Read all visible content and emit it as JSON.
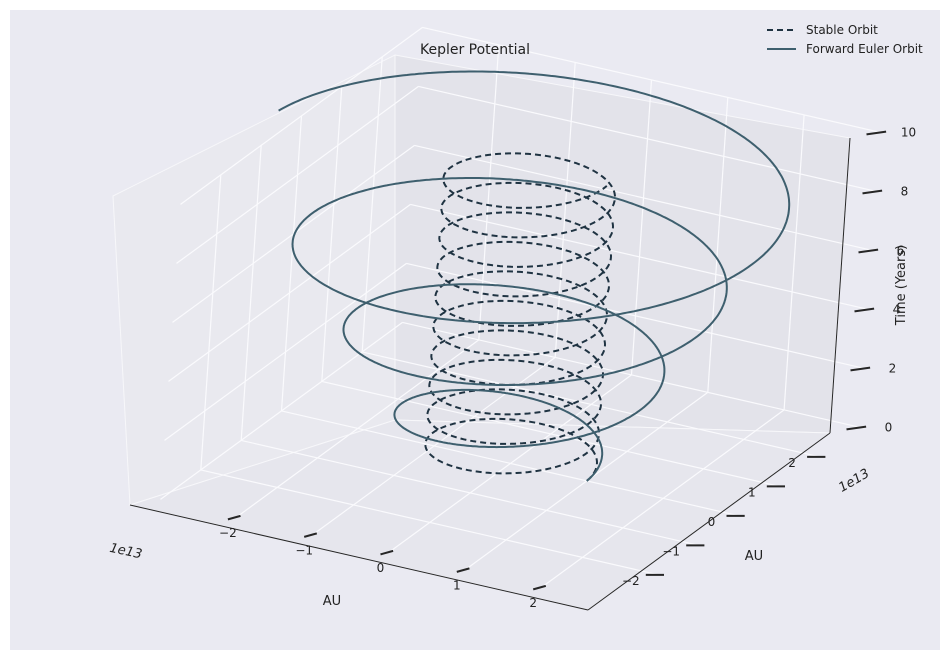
{
  "chart_data": {
    "type": "line",
    "projection": "3d",
    "title": "Kepler Potential",
    "x_axis": {
      "label": "AU",
      "offset_text": "1e13",
      "ticks": [
        -2,
        -1,
        0,
        1,
        2
      ],
      "tick_labels": [
        "−2",
        "−1",
        "0",
        "1",
        "2"
      ],
      "range": [
        -3,
        3
      ]
    },
    "y_axis": {
      "label": "AU",
      "offset_text": "1e13",
      "ticks": [
        -2,
        -1,
        0,
        1,
        2
      ],
      "tick_labels": [
        "−2",
        "−1",
        "0",
        "1",
        "2"
      ],
      "range": [
        -3,
        3
      ]
    },
    "z_axis": {
      "label": "Time (Years)",
      "ticks": [
        0,
        2,
        4,
        6,
        8,
        10
      ],
      "tick_labels": [
        "0",
        "2",
        "4",
        "6",
        "8",
        "10"
      ],
      "range": [
        0,
        10
      ]
    },
    "grid": true,
    "legend": {
      "placement": "top-right",
      "entries": [
        "Stable Orbit",
        "Forward Euler Orbit"
      ]
    },
    "series": [
      {
        "name": "Stable Orbit",
        "style": "dashed",
        "color": "#1f3342",
        "radius_1e13_au": 1.0,
        "revolutions": 10,
        "t_range": [
          0,
          10
        ]
      },
      {
        "name": "Forward Euler Orbit",
        "style": "solid",
        "color": "#3e5f6e",
        "radius_growth_1e13_au": [
          1.0,
          3.3
        ],
        "revolutions": 3.5,
        "t_range": [
          0,
          10
        ]
      }
    ]
  }
}
